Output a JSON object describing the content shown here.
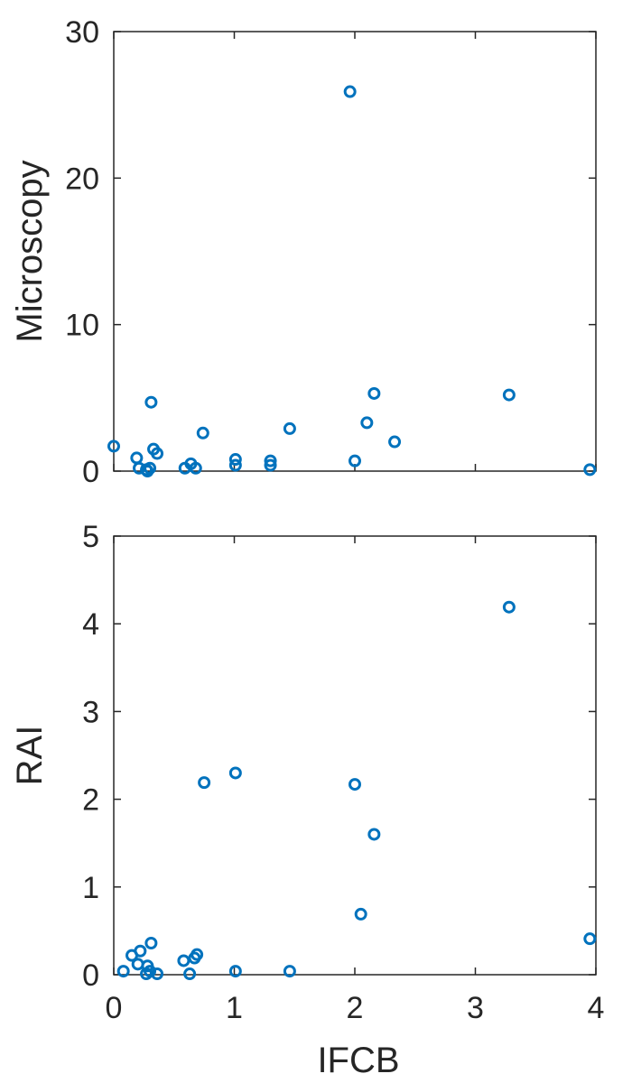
{
  "chart_data": [
    {
      "type": "scatter",
      "title": "",
      "xlabel": "",
      "ylabel": "Microscopy",
      "xlim": [
        0,
        4
      ],
      "ylim": [
        0,
        30
      ],
      "xticks": [
        0,
        1,
        2,
        3,
        4
      ],
      "xtick_labels": [
        "",
        "",
        "",
        "",
        ""
      ],
      "yticks": [
        0,
        10,
        20,
        30
      ],
      "ytick_labels": [
        "0",
        "10",
        "20",
        "30"
      ],
      "grid": false,
      "marker": "open-circle",
      "color": "#0072BD",
      "series": [
        {
          "x": [
            0.0,
            0.19,
            0.21,
            0.27,
            0.28,
            0.3,
            0.31,
            0.33,
            0.36,
            0.59,
            0.64,
            0.68,
            0.74,
            1.01,
            1.01,
            1.3,
            1.3,
            1.46,
            1.96,
            2.0,
            2.1,
            2.16,
            2.33,
            3.28,
            3.95
          ],
          "y": [
            1.7,
            0.9,
            0.2,
            0.1,
            0.0,
            0.2,
            4.7,
            1.5,
            1.2,
            0.2,
            0.5,
            0.2,
            2.6,
            0.8,
            0.4,
            0.7,
            0.4,
            2.9,
            25.9,
            0.7,
            3.3,
            5.3,
            2.0,
            5.2,
            0.1
          ]
        }
      ]
    },
    {
      "type": "scatter",
      "title": "",
      "xlabel": "IFCB",
      "ylabel": "RAI",
      "xlim": [
        0,
        4
      ],
      "ylim": [
        0,
        5
      ],
      "xticks": [
        0,
        1,
        2,
        3,
        4
      ],
      "xtick_labels": [
        "0",
        "1",
        "2",
        "3",
        "4"
      ],
      "yticks": [
        0,
        1,
        2,
        3,
        4,
        5
      ],
      "ytick_labels": [
        "0",
        "1",
        "2",
        "3",
        "4",
        "5"
      ],
      "grid": false,
      "marker": "open-circle",
      "color": "#0072BD",
      "series": [
        {
          "x": [
            0.08,
            0.15,
            0.2,
            0.22,
            0.27,
            0.28,
            0.3,
            0.31,
            0.36,
            0.58,
            0.63,
            0.67,
            0.69,
            0.75,
            1.01,
            1.01,
            1.46,
            2.0,
            2.05,
            2.16,
            3.28,
            3.95
          ],
          "y": [
            0.04,
            0.22,
            0.12,
            0.27,
            0.01,
            0.1,
            0.04,
            0.36,
            0.01,
            0.16,
            0.01,
            0.19,
            0.23,
            2.19,
            2.3,
            0.04,
            0.04,
            2.17,
            0.69,
            1.6,
            4.19,
            0.41
          ]
        }
      ]
    }
  ]
}
